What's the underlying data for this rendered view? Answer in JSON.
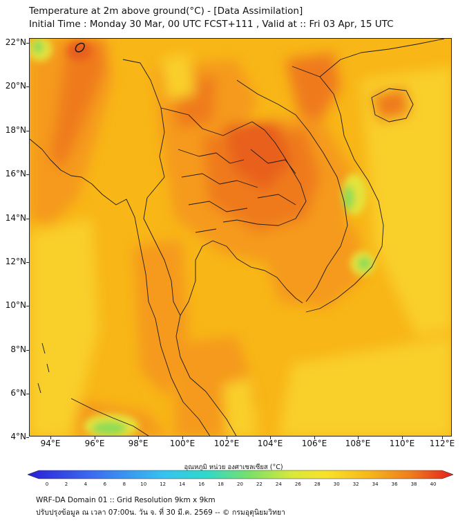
{
  "header": {
    "title_line1": "Temperature at 2m above ground(°C) - [Data Assimilation]",
    "title_line2": "Initial Time : Monday 30 Mar, 00 UTC FCST+111 , Valid at :: Fri 03 Apr, 15 UTC"
  },
  "map": {
    "lat_labels": [
      "22°N",
      "20°N",
      "18°N",
      "16°N",
      "14°N",
      "12°N",
      "10°N",
      "8°N",
      "6°N",
      "4°N"
    ],
    "lon_labels": [
      "94°E",
      "96°E",
      "98°E",
      "100°E",
      "102°E",
      "104°E",
      "106°E",
      "108°E",
      "110°E",
      "112°E"
    ],
    "colors": {
      "background": "#f8b617",
      "warm": "#f59a1a",
      "hot": "#ef7a1c",
      "hottest": "#e8601c",
      "cool": "#f9cf2a",
      "cooler": "#e6e23a",
      "green": "#8edc55",
      "border": "#1a1a1a"
    }
  },
  "colorbar": {
    "title": "อุณหภูมิ หน่วย องศาเซลเซียส (°C)",
    "ticks": [
      "0",
      "2",
      "4",
      "6",
      "8",
      "10",
      "12",
      "14",
      "16",
      "18",
      "20",
      "22",
      "24",
      "26",
      "28",
      "30",
      "32",
      "34",
      "36",
      "38",
      "40"
    ]
  },
  "footer": {
    "line1": "WRF-DA Domain 01 :: Grid Resolution 9km x 9km",
    "line2": "ปรับปรุงข้อมูล ณ เวลา 07:00น. วัน จ. ที่ 30 มี.ค. 2569 -- © กรมอุตุนิยมวิทยา"
  }
}
